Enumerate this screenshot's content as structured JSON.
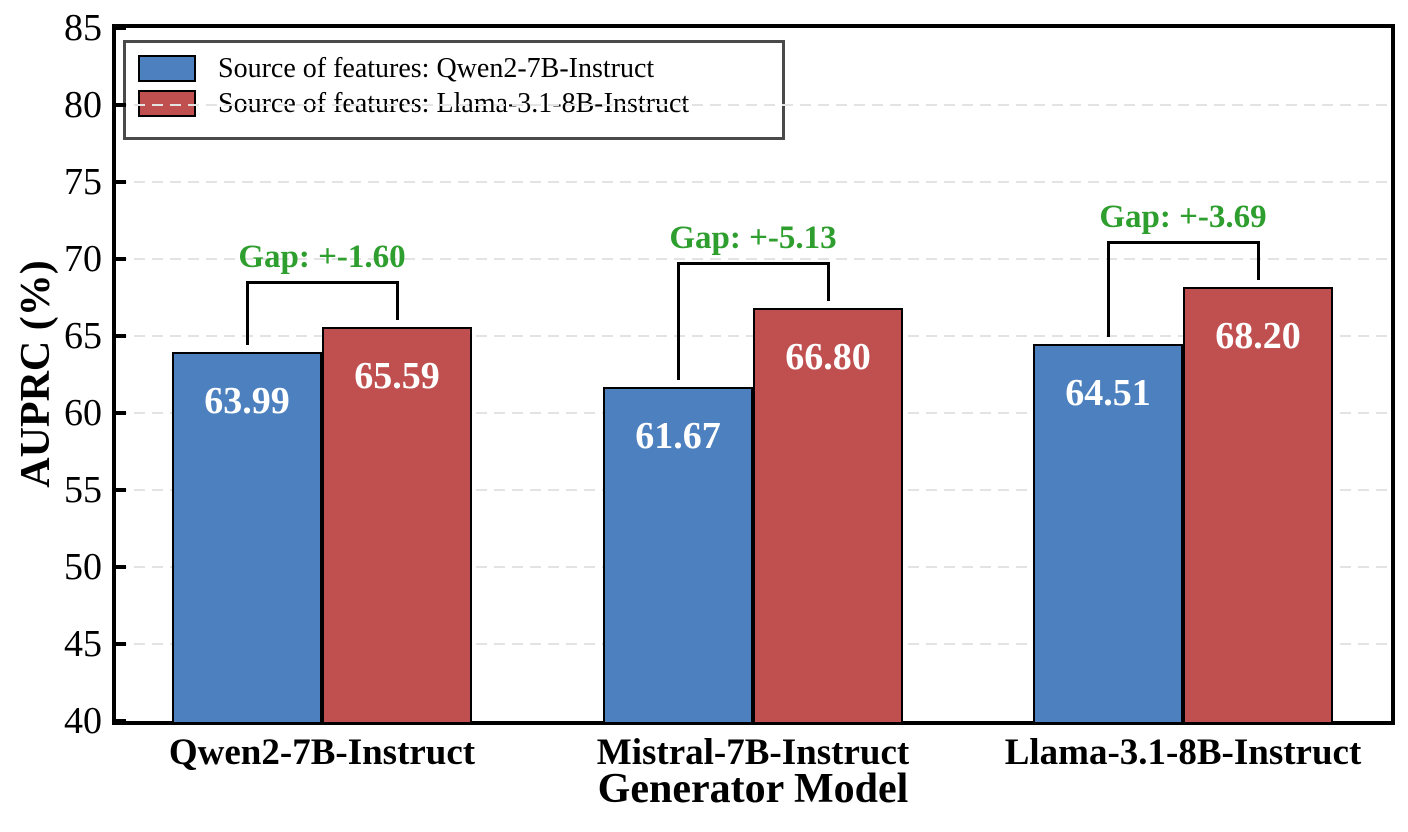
{
  "chart_data": {
    "type": "bar",
    "title": "",
    "xlabel": "Generator Model",
    "ylabel": "AUPRC (%)",
    "ylim": [
      40,
      85
    ],
    "yticks": [
      40,
      45,
      50,
      55,
      60,
      65,
      70,
      75,
      80,
      85
    ],
    "grid": "horizontal-dashed",
    "grid_color": "#e3e3e3",
    "legend_position": "upper-left",
    "categories": [
      "Qwen2-7B-Instruct",
      "Mistral-7B-Instruct",
      "Llama-3.1-8B-Instruct"
    ],
    "series": [
      {
        "name": "Source of features: Qwen2-7B-Instruct",
        "color": "#4D80BE",
        "values": [
          63.99,
          61.67,
          64.51
        ]
      },
      {
        "name": "Source of features: Llama-3.1-8B-Instruct",
        "color": "#C05050",
        "values": [
          65.59,
          66.8,
          68.2
        ]
      }
    ],
    "annotations": {
      "color": "#2E9E2E",
      "labels": [
        "Gap: +-1.60",
        "Gap: +-5.13",
        "Gap: +-3.69"
      ]
    }
  }
}
